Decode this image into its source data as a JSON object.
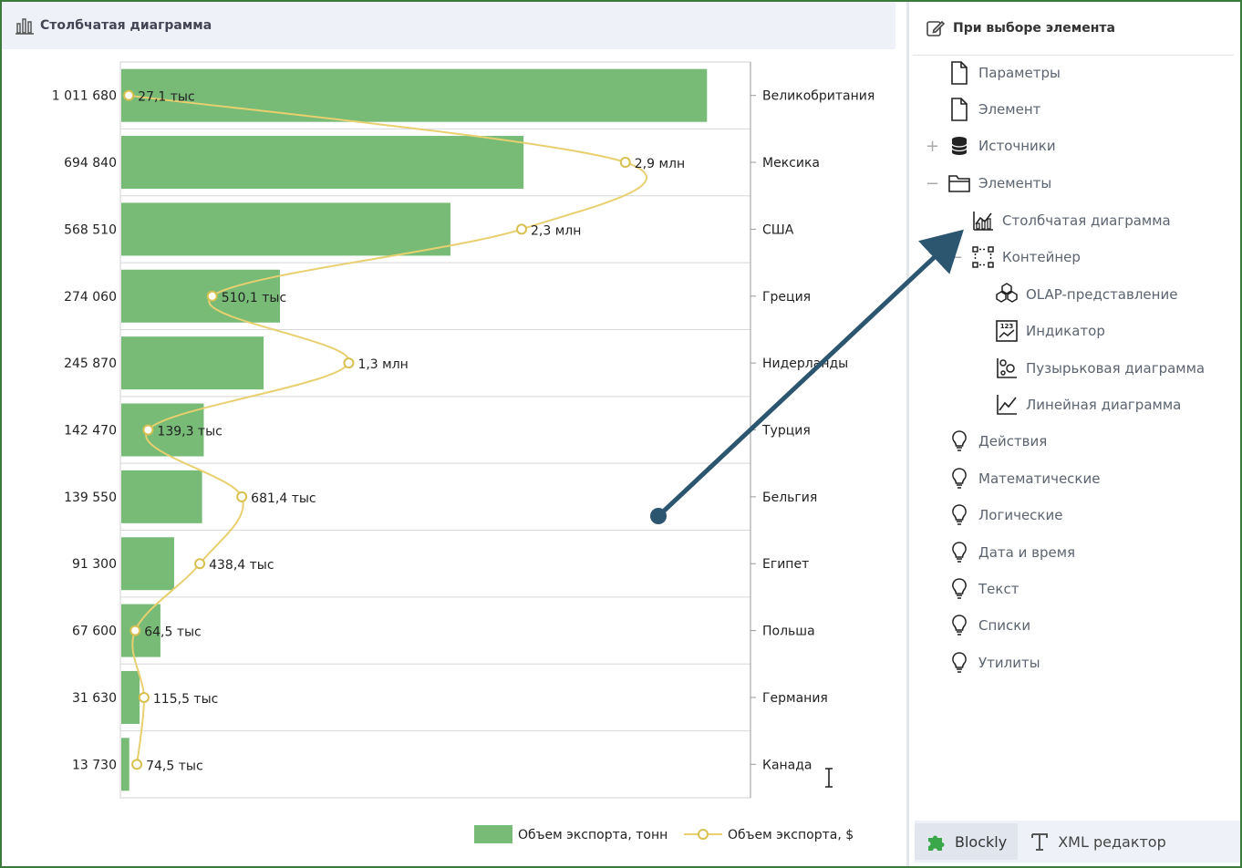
{
  "chart_header": {
    "title": "Столбчатая диаграмма",
    "icon": "bar-chart-icon"
  },
  "chart_data": {
    "type": "bar",
    "orientation": "horizontal",
    "categories": [
      "Великобритания",
      "Мексика",
      "США",
      "Греция",
      "Нидерланды",
      "Турция",
      "Бельгия",
      "Египет",
      "Польша",
      "Германия",
      "Канада"
    ],
    "series": [
      {
        "name": "Объем экспорта, тонн",
        "type": "bar",
        "color": "#77bb77",
        "values": [
          1011680,
          694840,
          568510,
          274060,
          245870,
          142470,
          139550,
          91300,
          67600,
          31630,
          13730
        ],
        "value_labels": [
          "1 011 680",
          "694 840",
          "568 510",
          "274 060",
          "245 870",
          "142 470",
          "139 550",
          "91 300",
          "67 600",
          "31 630",
          "13 730"
        ]
      },
      {
        "name": "Объем экспорта, $",
        "type": "line",
        "smooth": true,
        "color": "#e8d070",
        "values": [
          27100,
          2900000,
          2300000,
          510100,
          1300000,
          139300,
          681400,
          438400,
          64500,
          115500,
          74500
        ],
        "value_labels": [
          "27,1 тыс",
          "2,9 млн",
          "2,3 млн",
          "510,1 тыс",
          "1,3 млн",
          "139,3 тыс",
          "681,4 тыс",
          "438,4 тыс",
          "64,5 тыс",
          "115,5 тыс",
          "74,5 тыс"
        ]
      }
    ],
    "category_axis": "right",
    "grid": true,
    "legend": "bottom-right",
    "title": "",
    "xlabel": "",
    "ylabel": ""
  },
  "right_panel": {
    "header": {
      "title": "При выборе элемента",
      "icon": "edit-icon"
    },
    "tree": [
      {
        "label": "Параметры",
        "icon": "document-icon",
        "toggle": ""
      },
      {
        "label": "Элемент",
        "icon": "document-icon",
        "toggle": ""
      },
      {
        "label": "Источники",
        "icon": "database-icon",
        "toggle": "+"
      },
      {
        "label": "Элементы",
        "icon": "folder-icon",
        "toggle": "−"
      },
      {
        "label": "Столбчатая диаграмма",
        "icon": "bar-chart-icon",
        "toggle": ""
      },
      {
        "label": "Контейнер",
        "icon": "container-icon",
        "toggle": "−"
      },
      {
        "label": "OLAP-представление",
        "icon": "cubes-icon",
        "toggle": ""
      },
      {
        "label": "Индикатор",
        "icon": "indicator-icon",
        "toggle": ""
      },
      {
        "label": "Пузырьковая диаграмма",
        "icon": "bubble-chart-icon",
        "toggle": ""
      },
      {
        "label": "Линейная диаграмма",
        "icon": "line-chart-icon",
        "toggle": ""
      },
      {
        "label": "Действия",
        "icon": "lightbulb-icon",
        "toggle": ""
      },
      {
        "label": "Математические",
        "icon": "lightbulb-icon",
        "toggle": ""
      },
      {
        "label": "Логические",
        "icon": "lightbulb-icon",
        "toggle": ""
      },
      {
        "label": "Дата и время",
        "icon": "lightbulb-icon",
        "toggle": ""
      },
      {
        "label": "Текст",
        "icon": "lightbulb-icon",
        "toggle": ""
      },
      {
        "label": "Списки",
        "icon": "lightbulb-icon",
        "toggle": ""
      },
      {
        "label": "Утилиты",
        "icon": "lightbulb-icon",
        "toggle": ""
      }
    ],
    "tabs": [
      {
        "label": "Blockly",
        "icon": "puzzle-icon",
        "active": true
      },
      {
        "label": "XML редактор",
        "icon": "text-icon",
        "active": false
      }
    ]
  },
  "annotation": {
    "arrow_color": "#2c5570"
  }
}
